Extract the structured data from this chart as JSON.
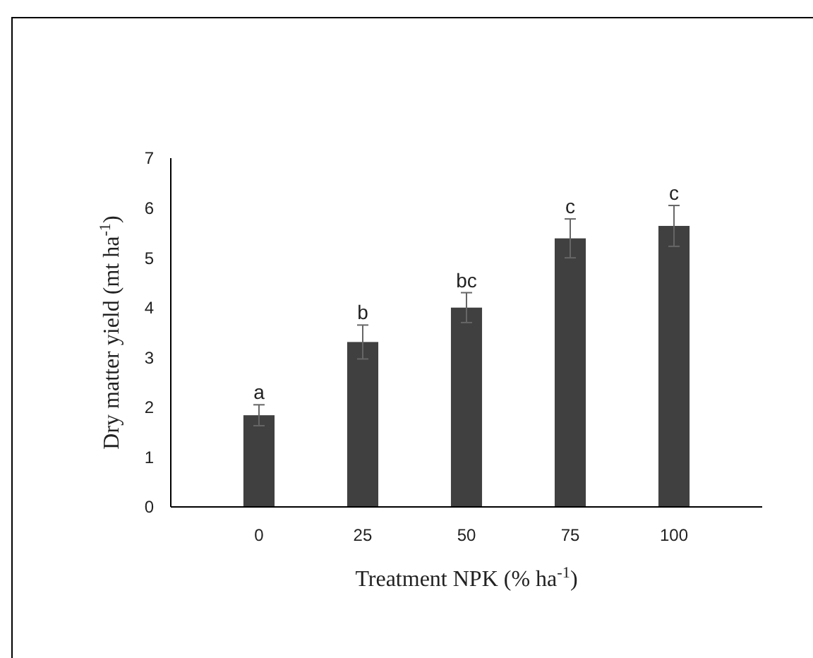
{
  "chart_data": {
    "type": "bar",
    "xlabel": "Treatment NPK (% ha$^{-1}$)",
    "ylabel": "Dry matter yield  (mt ha$^{-1}$)",
    "categories": [
      "0",
      "25",
      "50",
      "75",
      "100"
    ],
    "values": [
      1.84,
      3.31,
      4.0,
      5.39,
      5.64
    ],
    "errors": [
      0.21,
      0.34,
      0.3,
      0.39,
      0.41
    ],
    "color": "#404040",
    "ylim": [
      0,
      7
    ],
    "yticks": [
      0,
      1,
      2,
      3,
      4,
      5,
      6,
      7
    ],
    "grid": false,
    "annotations": [
      {
        "text": "a",
        "x": "0",
        "y": 2.05
      },
      {
        "text": "b",
        "x": "25",
        "y": 3.65
      },
      {
        "text": "bc",
        "x": "50",
        "y": 4.3
      },
      {
        "text": "c",
        "x": "75",
        "y": 5.78
      },
      {
        "text": "c",
        "x": "100",
        "y": 6.05
      }
    ]
  }
}
